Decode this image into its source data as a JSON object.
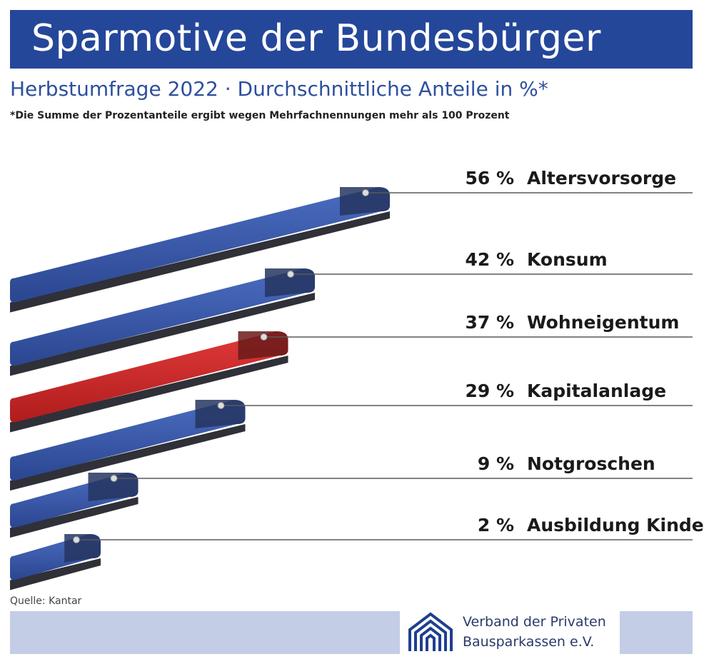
{
  "header": {
    "title": "Sparmotive der Bundesbürger",
    "subtitle": "Herbstumfrage 2022 · Durchschnittliche Anteile in %*",
    "footnote": "*Die Summe der Prozentanteile ergibt wegen Mehrfachnennungen mehr als 100 Prozent"
  },
  "footer": {
    "source": "Quelle: Kantar",
    "logo_line1": "Verband der Privaten",
    "logo_line2": "Bausparkassen e.V."
  },
  "colors": {
    "title_bar": "#25479a",
    "bar": "#3a5aaa",
    "highlight": "#d42b2b",
    "footer_bar": "#c3cde6"
  },
  "chart_data": {
    "type": "bar",
    "orientation": "horizontal",
    "categories": [
      "Altersvorsorge",
      "Konsum",
      "Wohneigentum",
      "Kapitalanlage",
      "Notgroschen",
      "Ausbildung Kinder"
    ],
    "values": [
      56,
      42,
      37,
      29,
      9,
      2
    ],
    "value_labels": [
      "56 %",
      "42 %",
      "37 %",
      "29 %",
      "9 %",
      "2 %"
    ],
    "highlight": "Wohneigentum",
    "unit": "%"
  }
}
